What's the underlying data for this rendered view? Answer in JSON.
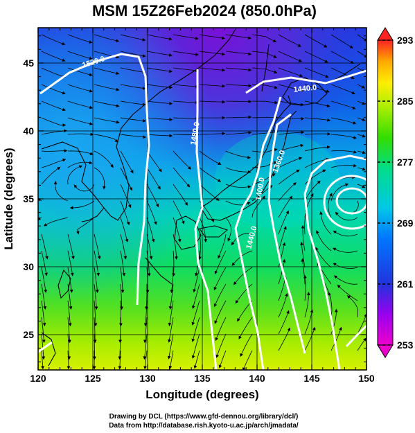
{
  "title": "MSM 15Z26Feb2024 (850.0hPa)",
  "x_axis": {
    "label": "Longitude (degrees)",
    "ticks": [
      "120",
      "125",
      "130",
      "135",
      "140",
      "145",
      "150"
    ],
    "range": [
      120,
      150
    ]
  },
  "y_axis": {
    "label": "Latitude  (degrees)",
    "ticks": [
      "25",
      "30",
      "35",
      "40",
      "45"
    ],
    "range": [
      22.4,
      47.6
    ]
  },
  "colorbar": {
    "ticks": [
      "253",
      "261",
      "269",
      "277",
      "285",
      "293"
    ],
    "range": [
      253,
      293
    ],
    "colors": [
      "#ee00cc",
      "#9900ee",
      "#2233dd",
      "#0077ff",
      "#00c8e6",
      "#00dd88",
      "#33dd00",
      "#aaee00",
      "#ffee00",
      "#ffaa00",
      "#ff5500",
      "#ff2222"
    ]
  },
  "contour_labels": [
    "1520.0",
    "1440.0",
    "1480.0",
    "1360.0",
    "1400.0",
    "1440.0"
  ],
  "footer": {
    "line1": "Drawing by DCL (https://www.gfd-dennou.org/library/dcl/)",
    "line2": "Data from http://database.rish.kyoto-u.ac.jp/arch/jmadata/"
  }
}
